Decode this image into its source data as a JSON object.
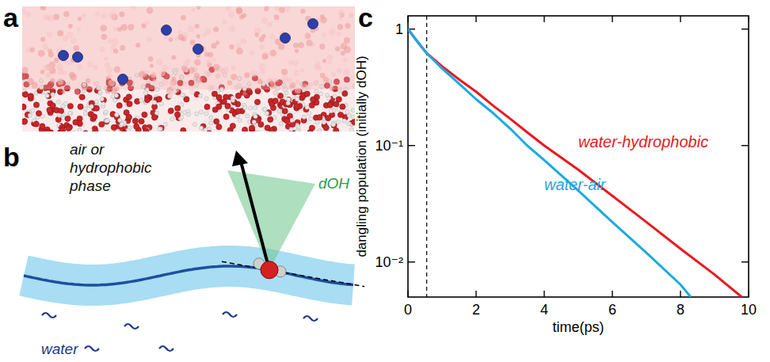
{
  "panels": [
    "a",
    "b",
    "c"
  ],
  "diagram": {
    "phase_label": [
      "air or",
      "hydrophobic",
      "phase"
    ],
    "cone_label": "dOH",
    "water_label": "water"
  },
  "chart_data": {
    "type": "line",
    "log": "y",
    "x_label": "time(ps)",
    "y_label": "dangling population (initially dOH)",
    "xlim": [
      0,
      10
    ],
    "xticks": [
      0,
      2,
      4,
      6,
      8,
      10
    ],
    "ylim": [
      0.005,
      1.3
    ],
    "yticks": [
      1,
      {
        "value": 0.1,
        "label": "10⁻¹"
      },
      {
        "value": 0.01,
        "label": "10⁻²"
      }
    ],
    "vline_x": 0.55,
    "series": [
      {
        "name": "water-hydrophobic",
        "color": "#e8191f",
        "x": [
          0,
          0.25,
          0.55,
          1,
          1.5,
          2,
          2.5,
          3,
          3.5,
          4,
          5,
          6,
          7,
          8,
          9,
          9.8
        ],
        "values": [
          1,
          0.8,
          0.62,
          0.48,
          0.37,
          0.29,
          0.22,
          0.17,
          0.13,
          0.1,
          0.062,
          0.037,
          0.022,
          0.013,
          0.0078,
          0.005
        ]
      },
      {
        "name": "water-air",
        "color": "#1ba9e1",
        "x": [
          0,
          0.25,
          0.55,
          1,
          1.5,
          2,
          2.5,
          3,
          3.5,
          4,
          5,
          6,
          7,
          8,
          8.3
        ],
        "values": [
          1,
          0.8,
          0.62,
          0.46,
          0.34,
          0.25,
          0.19,
          0.14,
          0.1,
          0.075,
          0.041,
          0.022,
          0.012,
          0.0064,
          0.005
        ]
      }
    ]
  }
}
